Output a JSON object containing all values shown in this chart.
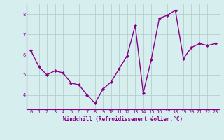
{
  "x": [
    0,
    1,
    2,
    3,
    4,
    5,
    6,
    7,
    8,
    9,
    10,
    11,
    12,
    13,
    14,
    15,
    16,
    17,
    18,
    19,
    20,
    21,
    22,
    23
  ],
  "y": [
    6.2,
    5.4,
    5.0,
    5.2,
    5.1,
    4.6,
    4.5,
    4.0,
    3.6,
    4.3,
    4.65,
    5.3,
    5.95,
    7.45,
    4.1,
    5.75,
    7.8,
    7.95,
    8.2,
    5.8,
    6.35,
    6.55,
    6.45,
    6.55
  ],
  "line_color": "#880088",
  "marker": "D",
  "marker_size": 2,
  "bg_color": "#d6eeee",
  "grid_color": "#b0c8c8",
  "xlabel": "Windchill (Refroidissement éolien,°C)",
  "xlabel_fontsize": 5.5,
  "ylim": [
    3.3,
    8.5
  ],
  "xlim": [
    -0.5,
    23.5
  ],
  "yticks": [
    4,
    5,
    6,
    7,
    8
  ],
  "xticks": [
    0,
    1,
    2,
    3,
    4,
    5,
    6,
    7,
    8,
    9,
    10,
    11,
    12,
    13,
    14,
    15,
    16,
    17,
    18,
    19,
    20,
    21,
    22,
    23
  ],
  "tick_fontsize": 5,
  "linewidth": 1.0
}
